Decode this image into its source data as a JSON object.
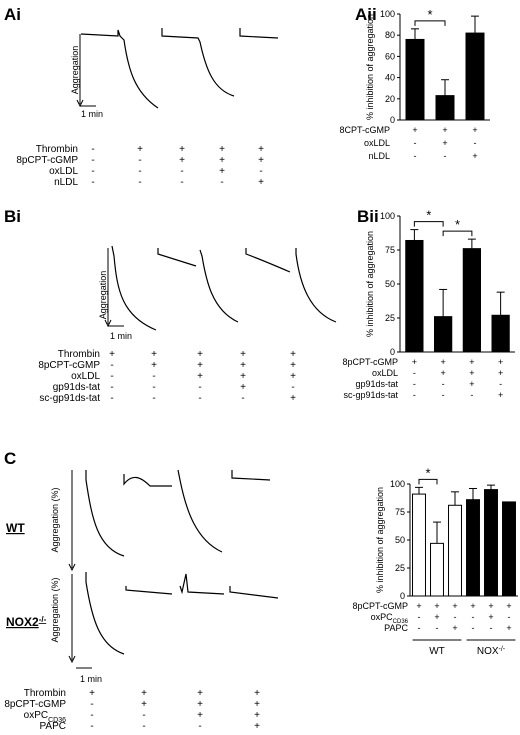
{
  "panels": {
    "Ai": {
      "label": "Ai",
      "ylabel": "Aggregation",
      "scalebar": "1 min"
    },
    "Aii": {
      "label": "Aii"
    },
    "Bi": {
      "label": "Bi",
      "ylabel": "Aggregation",
      "scalebar": "1 min"
    },
    "Bii": {
      "label": "Bii"
    },
    "C": {
      "label": "C",
      "ylabel": "Aggregation (%)",
      "scalebar": "1 min",
      "wt_label": "WT",
      "nox_label": "NOX2",
      "nox_sup": "-/-"
    }
  },
  "table_A": {
    "rows": [
      {
        "label": "Thrombin",
        "cells": [
          "-",
          "+",
          "+",
          "+",
          "+"
        ]
      },
      {
        "label": "8pCPT-cGMP",
        "cells": [
          "-",
          "-",
          "+",
          "+",
          "+"
        ]
      },
      {
        "label": "oxLDL",
        "cells": [
          "-",
          "-",
          "-",
          "+",
          "-"
        ]
      },
      {
        "label": "nLDL",
        "cells": [
          "-",
          "-",
          "-",
          "-",
          "+"
        ]
      }
    ]
  },
  "table_B": {
    "rows": [
      {
        "label": "Thrombin",
        "cells": [
          "+",
          "+",
          "+",
          "+",
          "+"
        ]
      },
      {
        "label": "8pCPT-cGMP",
        "cells": [
          "-",
          "+",
          "+",
          "+",
          "+"
        ]
      },
      {
        "label": "oxLDL",
        "cells": [
          "-",
          "-",
          "+",
          "+",
          "+"
        ]
      },
      {
        "label": "gp91ds-tat",
        "cells": [
          "-",
          "-",
          "-",
          "+",
          "-"
        ]
      },
      {
        "label": "sc-gp91ds-tat",
        "cells": [
          "-",
          "-",
          "-",
          "-",
          "+"
        ]
      }
    ]
  },
  "table_C": {
    "rows": [
      {
        "label": "Thrombin",
        "cells": [
          "+",
          "+",
          "+",
          "+"
        ]
      },
      {
        "label": "8pCPT-cGMP",
        "cells": [
          "-",
          "+",
          "+",
          "+"
        ]
      },
      {
        "label": "oxPC",
        "sub": "CD36",
        "cells": [
          "-",
          "-",
          "+",
          "+"
        ]
      },
      {
        "label": "PAPC",
        "cells": [
          "-",
          "-",
          "-",
          "+"
        ]
      }
    ]
  },
  "chart_data": [
    {
      "id": "Aii",
      "type": "bar",
      "ylabel": "% inhibition of aggregation",
      "ylim": [
        0,
        100
      ],
      "yticks": [
        0,
        20,
        40,
        60,
        80,
        100
      ],
      "values": [
        76,
        23,
        82
      ],
      "errors": [
        10,
        15,
        16
      ],
      "colors": [
        "#000000",
        "#000000",
        "#000000"
      ],
      "condition_rows": [
        {
          "label": "8CPT-cGMP",
          "cells": [
            "+",
            "+",
            "+"
          ]
        },
        {
          "label": "oxLDL",
          "cells": [
            "-",
            "+",
            "-"
          ]
        },
        {
          "label": "nLDL",
          "cells": [
            "-",
            "-",
            "+"
          ]
        }
      ],
      "significance": [
        {
          "from": 0,
          "to": 1,
          "label": "*"
        }
      ]
    },
    {
      "id": "Bii",
      "type": "bar",
      "ylabel": "% inhibition of aggregation",
      "ylim": [
        0,
        100
      ],
      "yticks": [
        0,
        25,
        50,
        75,
        100
      ],
      "values": [
        82,
        26,
        76,
        27
      ],
      "errors": [
        8,
        20,
        7,
        17
      ],
      "colors": [
        "#000000",
        "#000000",
        "#000000",
        "#000000"
      ],
      "condition_rows": [
        {
          "label": "8pCPT-cGMP",
          "cells": [
            "+",
            "+",
            "+",
            "+"
          ]
        },
        {
          "label": "oxLDL",
          "cells": [
            "-",
            "+",
            "+",
            "+"
          ]
        },
        {
          "label": "gp91ds-tat",
          "cells": [
            "-",
            "-",
            "+",
            "-"
          ]
        },
        {
          "label": "sc-gp91ds-tat",
          "cells": [
            "-",
            "-",
            "-",
            "+"
          ]
        }
      ],
      "significance": [
        {
          "from": 0,
          "to": 1,
          "label": "*"
        },
        {
          "from": 1,
          "to": 2,
          "label": "*"
        }
      ]
    },
    {
      "id": "C",
      "type": "bar",
      "ylabel": "% inhibition of aggregation",
      "ylim": [
        0,
        100
      ],
      "yticks": [
        0,
        25,
        50,
        75,
        100
      ],
      "values": [
        91,
        47,
        81,
        86,
        95,
        84
      ],
      "errors": [
        6,
        19,
        12,
        10,
        4,
        0
      ],
      "colors": [
        "#ffffff",
        "#ffffff",
        "#ffffff",
        "#000000",
        "#000000",
        "#000000"
      ],
      "condition_rows": [
        {
          "label": "8pCPT-cGMP",
          "cells": [
            "+",
            "+",
            "+",
            "+",
            "+",
            "+"
          ]
        },
        {
          "label": "oxPC",
          "sub": "CD36",
          "cells": [
            "-",
            "+",
            "-",
            "-",
            "+",
            "-"
          ]
        },
        {
          "label": "PAPC",
          "cells": [
            "-",
            "-",
            "+",
            "-",
            "-",
            "+"
          ]
        }
      ],
      "groups": [
        {
          "label": "WT",
          "from": 0,
          "to": 2
        },
        {
          "label": "NOX",
          "sup": "-/-",
          "from": 3,
          "to": 5
        }
      ],
      "significance": [
        {
          "from": 0,
          "to": 1,
          "label": "*"
        }
      ]
    }
  ]
}
